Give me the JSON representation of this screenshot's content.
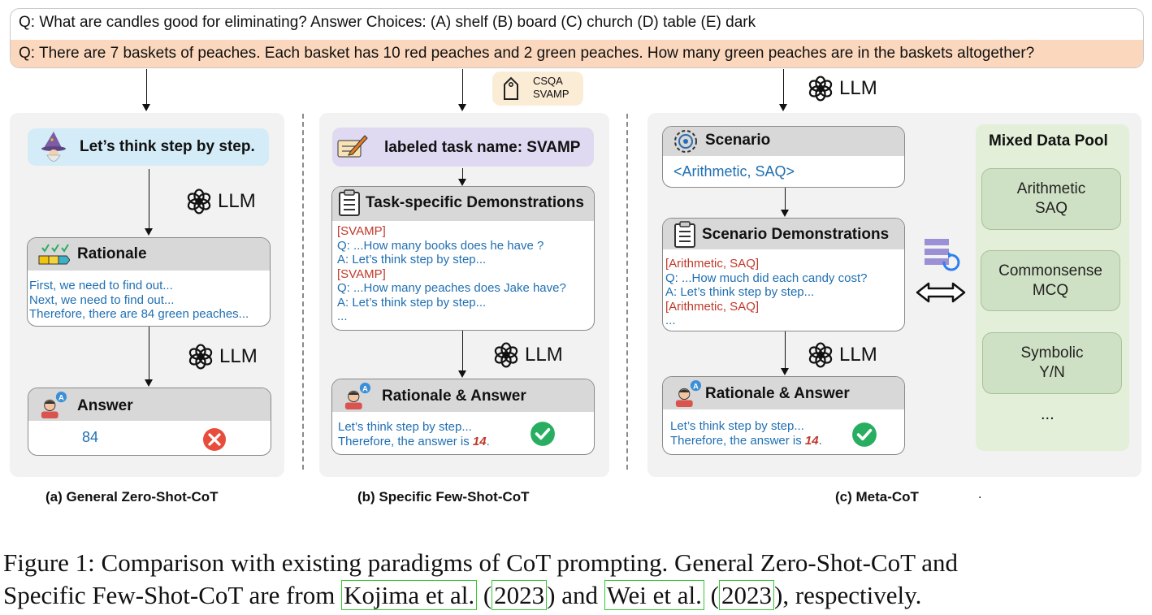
{
  "questions": {
    "q1": "Q: What are candles good for eliminating? Answer Choices: (A) shelf (B) board (C) church (D) table (E) dark",
    "q2": "Q: There are 7 baskets of peaches. Each basket has 10 red peaches and 2 green peaches. How many green peaches are in the baskets altogether?"
  },
  "llm_label": "LLM",
  "tag": {
    "line1": "CSQA",
    "line2": "SVAMP"
  },
  "panel_a": {
    "prompt": "Let’s think step by step.",
    "rationale_title": "Rationale",
    "rationale_lines": [
      "First, we need to find out...",
      "Next, we need to find out...",
      "Therefore, there are 84 green peaches..."
    ],
    "answer_title": "Answer",
    "answer_value": "84",
    "caption": "(a) General Zero-Shot-CoT"
  },
  "panel_b": {
    "task_label": "labeled task name: SVAMP",
    "demo_title": "Task-specific Demonstrations",
    "demo_lines": {
      "l1": "[SVAMP]",
      "l2": "Q: ...How many books does he have ?",
      "l3": "A: Let’s think step by step...",
      "l4": "[SVAMP]",
      "l5": "Q: ...How many peaches does Jake have?",
      "l6": "A: Let’s think step by step...",
      "l7": "..."
    },
    "answer_title": "Rationale & Answer",
    "answer_line1": "Let’s think step by step...",
    "answer_line2_prefix": "Therefore, the answer is ",
    "answer_value": "14",
    "answer_line2_suffix": ".",
    "caption": "(b) Specific Few-Shot-CoT"
  },
  "panel_c": {
    "scenario_title": "Scenario",
    "scenario_value": "<Arithmetic, SAQ>",
    "demo_title": "Scenario Demonstrations",
    "demo_lines": {
      "l1": "[Arithmetic, SAQ]",
      "l2": "Q: ...How much did each candy cost?",
      "l3": "A: Let’s think step by step...",
      "l4": "[Arithmetic, SAQ]",
      "l5": "..."
    },
    "answer_title": "Rationale & Answer",
    "answer_line1": "Let’s think step by step...",
    "answer_line2_prefix": "Therefore, the answer is ",
    "answer_value": "14",
    "answer_line2_suffix": ".",
    "pool_title": "Mixed Data Pool",
    "pool_items": [
      {
        "line1": "Arithmetic",
        "line2": "SAQ"
      },
      {
        "line1": "Commonsense",
        "line2": "MCQ"
      },
      {
        "line1": "Symbolic",
        "line2": "Y/N"
      }
    ],
    "pool_more": "...",
    "caption": "(c) Meta-CoT",
    "stray_dot": "."
  },
  "figure_caption": {
    "part1": "Figure 1:  Comparison with existing paradigms of CoT prompting.  General Zero-Shot-CoT and",
    "part2": "Specific Few-Shot-CoT are from ",
    "cite1": "Kojima et al.",
    "open1": " (",
    "year1": "2023",
    "mid": ") and ",
    "cite2": "Wei et al.",
    "open2": " (",
    "year2": "2023",
    "end": "), respectively."
  },
  "colors": {
    "question_highlight": "#fbd8bd",
    "prompt_box": "#d3ecf7",
    "task_box": "#e0d9f2",
    "pool_bg": "#e3efd9",
    "pool_item": "#cfe1c4",
    "text_blue": "#1f6fb2",
    "text_red": "#c0392b",
    "cross_red": "#e74c3c",
    "check_green": "#27ae60",
    "citation_green": "#37c837"
  },
  "icons": [
    "openai-logo-icon",
    "wizard-icon",
    "pencil-paper-icon",
    "clipboard-icon",
    "tag-icon",
    "checklist-icon",
    "person-answer-icon",
    "gear-icon",
    "database-refresh-icon",
    "double-arrow-icon",
    "cross-circle-icon",
    "check-circle-icon"
  ]
}
